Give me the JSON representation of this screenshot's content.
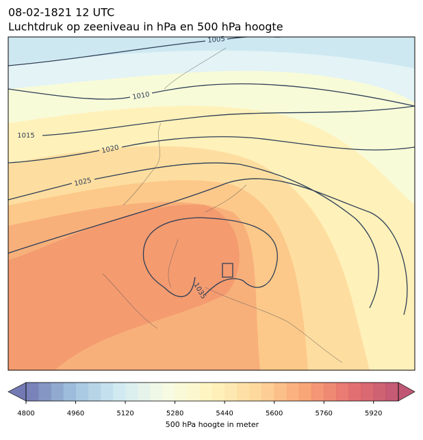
{
  "title": "08-02-1821 12 UTC",
  "subtitle": "Luchtdruk op zeeniveau in hPa en 500 hPa hoogte",
  "isobar_labels": [
    "1005",
    "1010",
    "1015",
    "1020",
    "1025",
    "1035"
  ],
  "colorbar": {
    "label": "500 hPa hoogte in meter",
    "lim": [
      4800,
      6000
    ],
    "ticks": [
      4800,
      4960,
      5120,
      5280,
      5440,
      5600,
      5760,
      5920
    ],
    "n_levels": 30,
    "stops": [
      "#5b62a6",
      "#8fb6d8",
      "#c9e6f0",
      "#f5fbe0",
      "#fff2b3",
      "#fdd08a",
      "#f7955f",
      "#e0595a",
      "#b53a5c"
    ]
  }
}
